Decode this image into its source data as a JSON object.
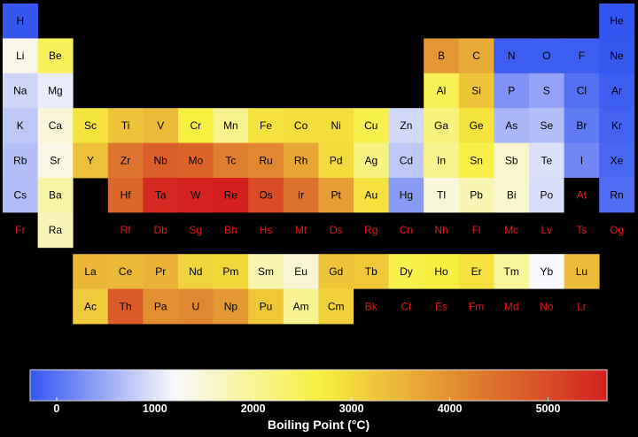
{
  "chart_data": {
    "type": "heatmap",
    "variable": "Boiling Point (°C)",
    "colormap": [
      "#3355f0",
      "#f8f8fc",
      "#f8f040",
      "#e08830",
      "#d42020"
    ],
    "missing_color": "#000000",
    "missing_text_color": "#e31a1a",
    "vmin": -270,
    "vmax": 5600,
    "colorbar": {
      "ticks": [
        "0",
        "1000",
        "2000",
        "3000",
        "4000",
        "5000"
      ],
      "tick_values": [
        0,
        1000,
        2000,
        3000,
        4000,
        5000
      ],
      "label": "Boiling Point (°C)"
    },
    "elements": [
      {
        "symbol": "H",
        "row": 1,
        "col": 1,
        "value": -253
      },
      {
        "symbol": "He",
        "row": 1,
        "col": 18,
        "value": -269
      },
      {
        "symbol": "Li",
        "row": 2,
        "col": 1,
        "value": 1342
      },
      {
        "symbol": "Be",
        "row": 2,
        "col": 2,
        "value": 2469
      },
      {
        "symbol": "B",
        "row": 2,
        "col": 13,
        "value": 3927
      },
      {
        "symbol": "C",
        "row": 2,
        "col": 14,
        "value": 3642
      },
      {
        "symbol": "N",
        "row": 2,
        "col": 15,
        "value": -196
      },
      {
        "symbol": "O",
        "row": 2,
        "col": 16,
        "value": -183
      },
      {
        "symbol": "F",
        "row": 2,
        "col": 17,
        "value": -188
      },
      {
        "symbol": "Ne",
        "row": 2,
        "col": 18,
        "value": -246
      },
      {
        "symbol": "Na",
        "row": 3,
        "col": 1,
        "value": 883
      },
      {
        "symbol": "Mg",
        "row": 3,
        "col": 2,
        "value": 1090
      },
      {
        "symbol": "Al",
        "row": 3,
        "col": 13,
        "value": 2519
      },
      {
        "symbol": "Si",
        "row": 3,
        "col": 14,
        "value": 3265
      },
      {
        "symbol": "P",
        "row": 3,
        "col": 15,
        "value": 280
      },
      {
        "symbol": "S",
        "row": 3,
        "col": 16,
        "value": 445
      },
      {
        "symbol": "Cl",
        "row": 3,
        "col": 17,
        "value": -34
      },
      {
        "symbol": "Ar",
        "row": 3,
        "col": 18,
        "value": -186
      },
      {
        "symbol": "K",
        "row": 4,
        "col": 1,
        "value": 759
      },
      {
        "symbol": "Ca",
        "row": 4,
        "col": 2,
        "value": 1484
      },
      {
        "symbol": "Sc",
        "row": 4,
        "col": 3,
        "value": 2836
      },
      {
        "symbol": "Ti",
        "row": 4,
        "col": 4,
        "value": 3287
      },
      {
        "symbol": "V",
        "row": 4,
        "col": 5,
        "value": 3407
      },
      {
        "symbol": "Cr",
        "row": 4,
        "col": 6,
        "value": 2671
      },
      {
        "symbol": "Mn",
        "row": 4,
        "col": 7,
        "value": 2061
      },
      {
        "symbol": "Fe",
        "row": 4,
        "col": 8,
        "value": 2861
      },
      {
        "symbol": "Co",
        "row": 4,
        "col": 9,
        "value": 2927
      },
      {
        "symbol": "Ni",
        "row": 4,
        "col": 10,
        "value": 2913
      },
      {
        "symbol": "Cu",
        "row": 4,
        "col": 11,
        "value": 2562
      },
      {
        "symbol": "Zn",
        "row": 4,
        "col": 12,
        "value": 907
      },
      {
        "symbol": "Ga",
        "row": 4,
        "col": 13,
        "value": 2204
      },
      {
        "symbol": "Ge",
        "row": 4,
        "col": 14,
        "value": 2833
      },
      {
        "symbol": "As",
        "row": 4,
        "col": 15,
        "value": 614
      },
      {
        "symbol": "Se",
        "row": 4,
        "col": 16,
        "value": 685
      },
      {
        "symbol": "Br",
        "row": 4,
        "col": 17,
        "value": 59
      },
      {
        "symbol": "Kr",
        "row": 4,
        "col": 18,
        "value": -153
      },
      {
        "symbol": "Rb",
        "row": 5,
        "col": 1,
        "value": 688
      },
      {
        "symbol": "Sr",
        "row": 5,
        "col": 2,
        "value": 1382
      },
      {
        "symbol": "Y",
        "row": 5,
        "col": 3,
        "value": 3345
      },
      {
        "symbol": "Zr",
        "row": 5,
        "col": 4,
        "value": 4409
      },
      {
        "symbol": "Nb",
        "row": 5,
        "col": 5,
        "value": 4744
      },
      {
        "symbol": "Mo",
        "row": 5,
        "col": 6,
        "value": 4639
      },
      {
        "symbol": "Tc",
        "row": 5,
        "col": 7,
        "value": 4265
      },
      {
        "symbol": "Ru",
        "row": 5,
        "col": 8,
        "value": 4150
      },
      {
        "symbol": "Rh",
        "row": 5,
        "col": 9,
        "value": 3695
      },
      {
        "symbol": "Pd",
        "row": 5,
        "col": 10,
        "value": 2963
      },
      {
        "symbol": "Ag",
        "row": 5,
        "col": 11,
        "value": 2162
      },
      {
        "symbol": "Cd",
        "row": 5,
        "col": 12,
        "value": 767
      },
      {
        "symbol": "In",
        "row": 5,
        "col": 13,
        "value": 2072
      },
      {
        "symbol": "Sn",
        "row": 5,
        "col": 14,
        "value": 2602
      },
      {
        "symbol": "Sb",
        "row": 5,
        "col": 15,
        "value": 1587
      },
      {
        "symbol": "Te",
        "row": 5,
        "col": 16,
        "value": 988
      },
      {
        "symbol": "I",
        "row": 5,
        "col": 17,
        "value": 184
      },
      {
        "symbol": "Xe",
        "row": 5,
        "col": 18,
        "value": -108
      },
      {
        "symbol": "Cs",
        "row": 6,
        "col": 1,
        "value": 671
      },
      {
        "symbol": "Ba",
        "row": 6,
        "col": 2,
        "value": 1870
      },
      {
        "symbol": "Hf",
        "row": 6,
        "col": 4,
        "value": 4603
      },
      {
        "symbol": "Ta",
        "row": 6,
        "col": 5,
        "value": 5458
      },
      {
        "symbol": "W",
        "row": 6,
        "col": 6,
        "value": 5555
      },
      {
        "symbol": "Re",
        "row": 6,
        "col": 7,
        "value": 5596
      },
      {
        "symbol": "Os",
        "row": 6,
        "col": 8,
        "value": 5012
      },
      {
        "symbol": "Ir",
        "row": 6,
        "col": 9,
        "value": 4428
      },
      {
        "symbol": "Pt",
        "row": 6,
        "col": 10,
        "value": 3825
      },
      {
        "symbol": "Au",
        "row": 6,
        "col": 11,
        "value": 2856
      },
      {
        "symbol": "Hg",
        "row": 6,
        "col": 12,
        "value": 357
      },
      {
        "symbol": "Tl",
        "row": 6,
        "col": 13,
        "value": 1473
      },
      {
        "symbol": "Pb",
        "row": 6,
        "col": 14,
        "value": 1749
      },
      {
        "symbol": "Bi",
        "row": 6,
        "col": 15,
        "value": 1564
      },
      {
        "symbol": "Po",
        "row": 6,
        "col": 16,
        "value": 962
      },
      {
        "symbol": "At",
        "row": 6,
        "col": 17,
        "value": null
      },
      {
        "symbol": "Rn",
        "row": 6,
        "col": 18,
        "value": -62
      },
      {
        "symbol": "Fr",
        "row": 7,
        "col": 1,
        "value": null
      },
      {
        "symbol": "Ra",
        "row": 7,
        "col": 2,
        "value": 1737
      },
      {
        "symbol": "Rf",
        "row": 7,
        "col": 4,
        "value": null
      },
      {
        "symbol": "Db",
        "row": 7,
        "col": 5,
        "value": null
      },
      {
        "symbol": "Sg",
        "row": 7,
        "col": 6,
        "value": null
      },
      {
        "symbol": "Bh",
        "row": 7,
        "col": 7,
        "value": null
      },
      {
        "symbol": "Hs",
        "row": 7,
        "col": 8,
        "value": null
      },
      {
        "symbol": "Mt",
        "row": 7,
        "col": 9,
        "value": null
      },
      {
        "symbol": "Ds",
        "row": 7,
        "col": 10,
        "value": null
      },
      {
        "symbol": "Rg",
        "row": 7,
        "col": 11,
        "value": null
      },
      {
        "symbol": "Cn",
        "row": 7,
        "col": 12,
        "value": null
      },
      {
        "symbol": "Nh",
        "row": 7,
        "col": 13,
        "value": null
      },
      {
        "symbol": "Fl",
        "row": 7,
        "col": 14,
        "value": null
      },
      {
        "symbol": "Mc",
        "row": 7,
        "col": 15,
        "value": null
      },
      {
        "symbol": "Lv",
        "row": 7,
        "col": 16,
        "value": null
      },
      {
        "symbol": "Ts",
        "row": 7,
        "col": 17,
        "value": null
      },
      {
        "symbol": "Og",
        "row": 7,
        "col": 18,
        "value": null
      },
      {
        "symbol": "La",
        "row": 9,
        "col": 3,
        "value": 3464
      },
      {
        "symbol": "Ce",
        "row": 9,
        "col": 4,
        "value": 3443
      },
      {
        "symbol": "Pr",
        "row": 9,
        "col": 5,
        "value": 3520
      },
      {
        "symbol": "Nd",
        "row": 9,
        "col": 6,
        "value": 3074
      },
      {
        "symbol": "Pm",
        "row": 9,
        "col": 7,
        "value": 3000
      },
      {
        "symbol": "Sm",
        "row": 9,
        "col": 8,
        "value": 1794
      },
      {
        "symbol": "Eu",
        "row": 9,
        "col": 9,
        "value": 1529
      },
      {
        "symbol": "Gd",
        "row": 9,
        "col": 10,
        "value": 3273
      },
      {
        "symbol": "Tb",
        "row": 9,
        "col": 11,
        "value": 3230
      },
      {
        "symbol": "Dy",
        "row": 9,
        "col": 12,
        "value": 2567
      },
      {
        "symbol": "Ho",
        "row": 9,
        "col": 13,
        "value": 2700
      },
      {
        "symbol": "Er",
        "row": 9,
        "col": 14,
        "value": 2868
      },
      {
        "symbol": "Tm",
        "row": 9,
        "col": 15,
        "value": 1950
      },
      {
        "symbol": "Yb",
        "row": 9,
        "col": 16,
        "value": 1196
      },
      {
        "symbol": "Lu",
        "row": 9,
        "col": 17,
        "value": 3402
      },
      {
        "symbol": "Ac",
        "row": 10,
        "col": 3,
        "value": 3198
      },
      {
        "symbol": "Th",
        "row": 10,
        "col": 4,
        "value": 4788
      },
      {
        "symbol": "Pa",
        "row": 10,
        "col": 5,
        "value": 4027
      },
      {
        "symbol": "U",
        "row": 10,
        "col": 6,
        "value": 4131
      },
      {
        "symbol": "Np",
        "row": 10,
        "col": 7,
        "value": 3902
      },
      {
        "symbol": "Pu",
        "row": 10,
        "col": 8,
        "value": 3228
      },
      {
        "symbol": "Am",
        "row": 10,
        "col": 9,
        "value": 2011
      },
      {
        "symbol": "Cm",
        "row": 10,
        "col": 10,
        "value": 3100
      },
      {
        "symbol": "Bk",
        "row": 10,
        "col": 11,
        "value": null
      },
      {
        "symbol": "Cf",
        "row": 10,
        "col": 12,
        "value": null
      },
      {
        "symbol": "Es",
        "row": 10,
        "col": 13,
        "value": null
      },
      {
        "symbol": "Fm",
        "row": 10,
        "col": 14,
        "value": null
      },
      {
        "symbol": "Md",
        "row": 10,
        "col": 15,
        "value": null
      },
      {
        "symbol": "No",
        "row": 10,
        "col": 16,
        "value": null
      },
      {
        "symbol": "Lr",
        "row": 10,
        "col": 17,
        "value": null
      }
    ]
  }
}
